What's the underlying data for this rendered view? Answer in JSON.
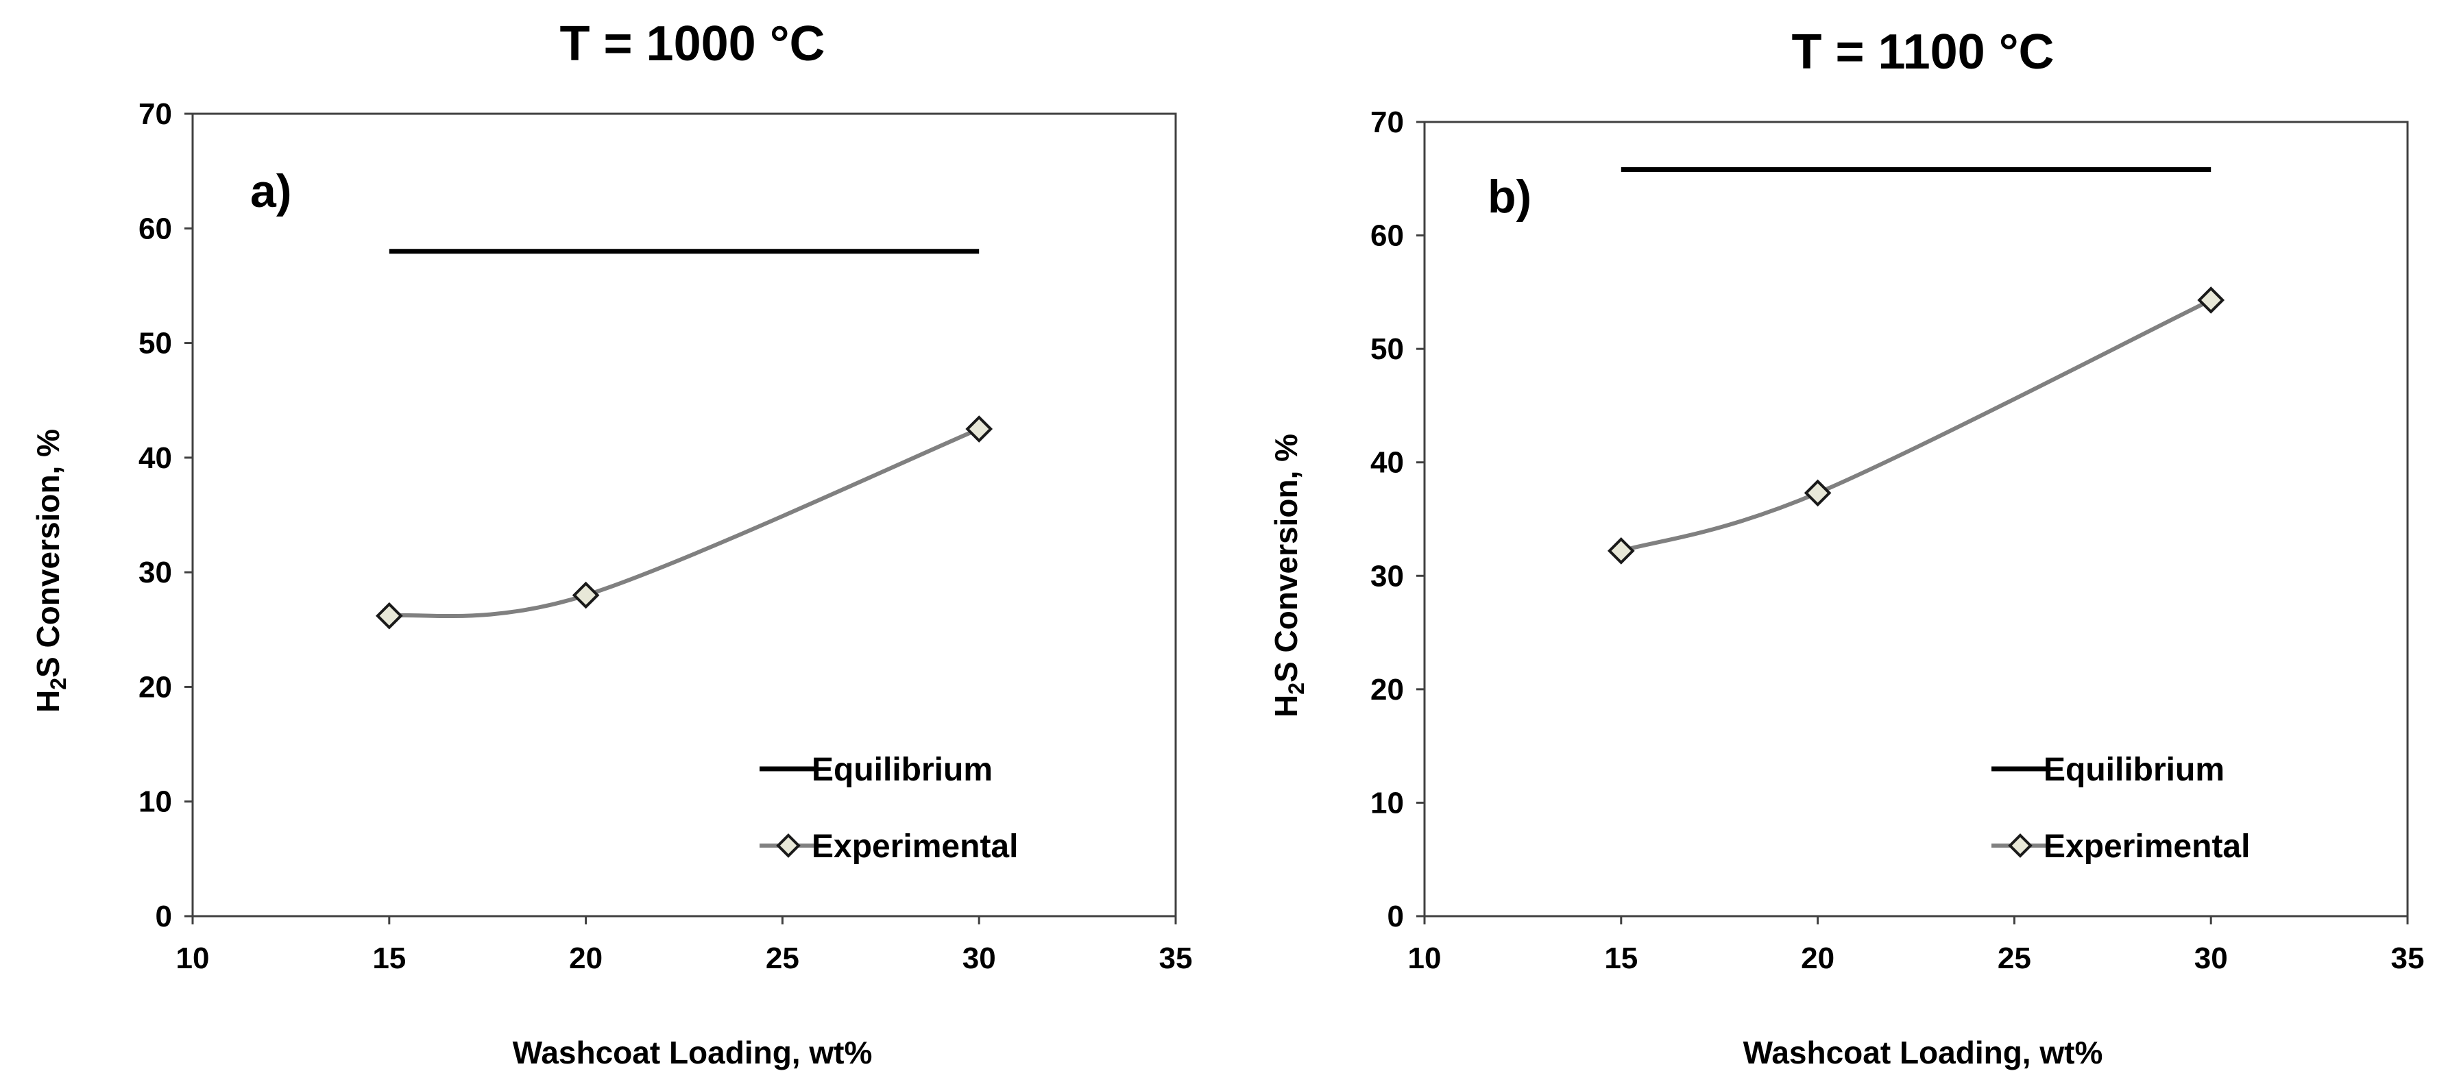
{
  "chart_data": [
    {
      "type": "line",
      "title": "T = 1000 °C",
      "panel_label": "a)",
      "xlabel": "Washcoat  Loading, wt%",
      "ylabel_prefix": "H",
      "ylabel_sub": "2",
      "ylabel_suffix": "S Conversion, %",
      "xlim": [
        10,
        35
      ],
      "ylim": [
        0,
        70
      ],
      "xticks": [
        10,
        15,
        20,
        25,
        30,
        35
      ],
      "yticks": [
        0,
        10,
        20,
        30,
        40,
        50,
        60,
        70
      ],
      "legend_position": "lower-right",
      "series": [
        {
          "name": "Equilibrium",
          "style": "line",
          "color": "#000000",
          "x": [
            15,
            30
          ],
          "y": [
            58,
            58
          ]
        },
        {
          "name": "Experimental",
          "style": "smooth-line-diamond",
          "color": "#808080",
          "marker_fill": "#e8e8d8",
          "x": [
            15,
            20,
            30
          ],
          "y": [
            26.2,
            28,
            42.5
          ]
        }
      ]
    },
    {
      "type": "line",
      "title": "T = 1100 °C",
      "panel_label": "b)",
      "xlabel": "Washcoat  Loading, wt%",
      "ylabel_prefix": "H",
      "ylabel_sub": "2",
      "ylabel_suffix": "S Conversion, %",
      "xlim": [
        10,
        35
      ],
      "ylim": [
        0,
        70
      ],
      "xticks": [
        10,
        15,
        20,
        25,
        30,
        35
      ],
      "yticks": [
        0,
        10,
        20,
        30,
        40,
        50,
        60,
        70
      ],
      "legend_position": "lower-right",
      "series": [
        {
          "name": "Equilibrium",
          "style": "line",
          "color": "#000000",
          "x": [
            15,
            30
          ],
          "y": [
            65.8,
            65.8
          ]
        },
        {
          "name": "Experimental",
          "style": "smooth-line-diamond",
          "color": "#808080",
          "marker_fill": "#e8e8d8",
          "x": [
            15,
            20,
            30
          ],
          "y": [
            32.2,
            37.3,
            54.3
          ]
        }
      ]
    }
  ]
}
